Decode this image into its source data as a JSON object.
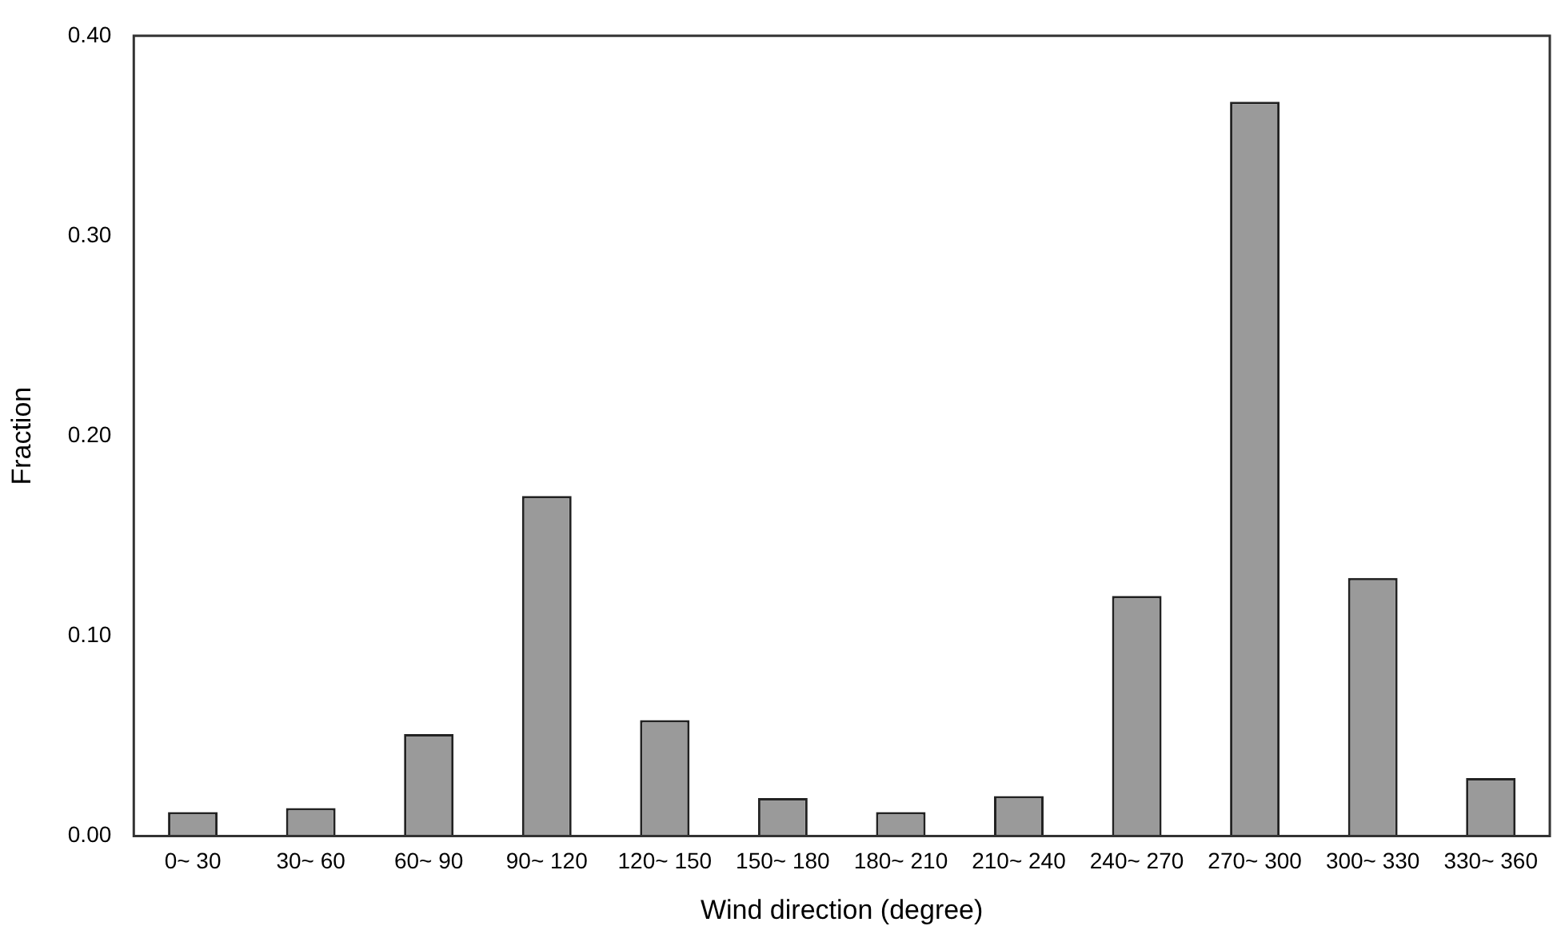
{
  "chart_data": {
    "type": "bar",
    "xlabel": "Wind direction (degree)",
    "ylabel": "Fraction",
    "categories": [
      "0~ 30",
      "30~ 60",
      "60~ 90",
      "90~ 120",
      "120~ 150",
      "150~ 180",
      "180~ 210",
      "210~ 240",
      "240~ 270",
      "270~ 300",
      "300~ 330",
      "330~ 360"
    ],
    "values": [
      0.012,
      0.014,
      0.051,
      0.17,
      0.058,
      0.019,
      0.012,
      0.02,
      0.12,
      0.367,
      0.129,
      0.029
    ],
    "color": "#9a9a9a",
    "ylim": [
      0,
      0.4
    ],
    "yticks": [
      {
        "value": 0,
        "label": "0.00"
      },
      {
        "value": 0.1,
        "label": "0.10"
      },
      {
        "value": 0.2,
        "label": "0.20"
      },
      {
        "value": 0.3,
        "label": "0.30"
      },
      {
        "value": 0.4,
        "label": "0.40"
      }
    ],
    "grid": false,
    "legend": false
  }
}
